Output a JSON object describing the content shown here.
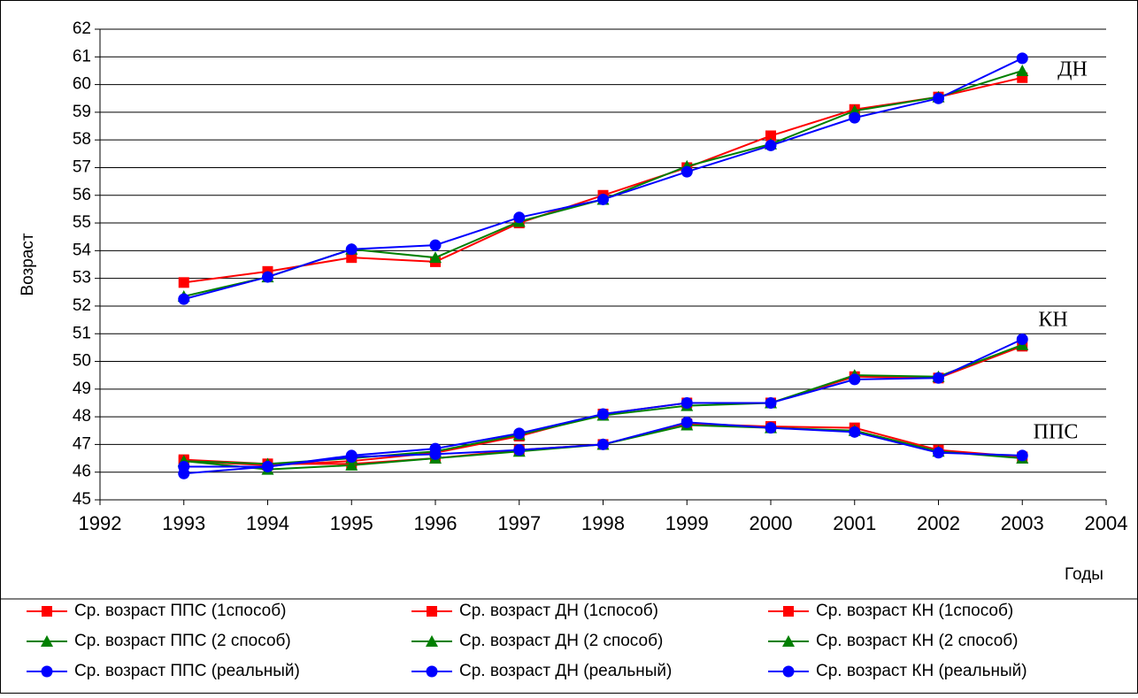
{
  "chart_data": {
    "type": "line",
    "x_label": "Годы",
    "y_label": "Возраст",
    "x": [
      1993,
      1994,
      1995,
      1996,
      1997,
      1998,
      1999,
      2000,
      2001,
      2002,
      2003
    ],
    "xlim": [
      1992,
      2004
    ],
    "xticks": [
      1992,
      1993,
      1994,
      1995,
      1996,
      1997,
      1998,
      1999,
      2000,
      2001,
      2002,
      2003,
      2004
    ],
    "ylim": [
      45,
      62
    ],
    "yticks": [
      45,
      46,
      47,
      48,
      49,
      50,
      51,
      52,
      53,
      54,
      55,
      56,
      57,
      58,
      59,
      60,
      61,
      62
    ],
    "grid": true,
    "legend": "bottom",
    "annotations": [
      "ДН",
      "КН",
      "ППС"
    ],
    "series": [
      {
        "name": "Ср. возраст ППС (1способ)",
        "color": "#ff0000",
        "marker": "square",
        "values": [
          46.45,
          46.3,
          46.3,
          46.5,
          46.8,
          47.0,
          47.75,
          47.65,
          47.6,
          46.8,
          46.55
        ]
      },
      {
        "name": "Ср. возраст ДН (1способ)",
        "color": "#ff0000",
        "marker": "square",
        "values": [
          52.85,
          53.25,
          53.75,
          53.6,
          55.0,
          56.0,
          57.0,
          58.15,
          59.1,
          59.55,
          60.25
        ]
      },
      {
        "name": "Ср. возраст КН (1способ)",
        "color": "#ff0000",
        "marker": "square",
        "values": [
          46.4,
          46.25,
          46.4,
          46.7,
          47.3,
          48.1,
          48.5,
          48.5,
          49.45,
          49.4,
          50.55
        ]
      },
      {
        "name": "Ср. возраст ППС (2 способ)",
        "color": "#008000",
        "marker": "triangle",
        "values": [
          46.4,
          46.1,
          46.25,
          46.5,
          46.75,
          47.0,
          47.7,
          47.6,
          47.5,
          46.75,
          46.5
        ]
      },
      {
        "name": "Ср. возраст ДН (2 способ)",
        "color": "#008000",
        "marker": "triangle",
        "values": [
          52.35,
          53.05,
          54.05,
          53.75,
          55.05,
          55.85,
          57.05,
          57.85,
          59.05,
          59.55,
          60.5
        ]
      },
      {
        "name": "Ср. возраст КН (2 способ)",
        "color": "#008000",
        "marker": "triangle",
        "values": [
          46.4,
          46.3,
          46.5,
          46.75,
          47.35,
          48.05,
          48.4,
          48.5,
          49.5,
          49.45,
          50.6
        ]
      },
      {
        "name": "Ср. возраст ППС (реальный)",
        "color": "#0000ff",
        "marker": "circle",
        "values": [
          46.2,
          46.2,
          46.55,
          46.65,
          46.8,
          47.0,
          47.8,
          47.6,
          47.45,
          46.7,
          46.6
        ]
      },
      {
        "name": "Ср. возраст ДН (реальный)",
        "color": "#0000ff",
        "marker": "circle",
        "values": [
          52.25,
          53.05,
          54.05,
          54.2,
          55.2,
          55.85,
          56.85,
          57.8,
          58.8,
          59.5,
          60.95
        ]
      },
      {
        "name": "Ср. возраст КН (реальный)",
        "color": "#0000ff",
        "marker": "circle",
        "values": [
          45.95,
          46.2,
          46.6,
          46.85,
          47.4,
          48.1,
          48.5,
          48.5,
          49.35,
          49.4,
          50.8
        ]
      }
    ]
  }
}
